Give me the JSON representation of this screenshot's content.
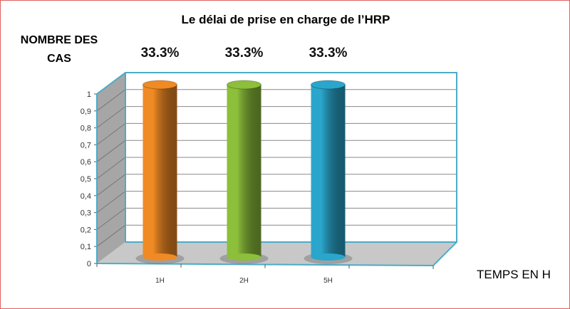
{
  "chart_data": {
    "type": "bar",
    "style": "3d-cylinder",
    "title": "Le délai de prise en charge de l’HRP",
    "ylabel": "NOMBRE DES CAS",
    "xlabel": "TEMPS EN H",
    "categories": [
      "1H",
      "2H",
      "5H"
    ],
    "values": [
      1,
      1,
      1
    ],
    "data_labels": [
      "33.3%",
      "33.3%",
      "33.3%"
    ],
    "ylim": [
      0,
      1
    ],
    "yticks": [
      "0",
      "0,1",
      "0,2",
      "0,3",
      "0,4",
      "0,5",
      "0,6",
      "0,7",
      "0,8",
      "0,9",
      "1"
    ],
    "grid": true,
    "colors": [
      "#f08a24",
      "#8cbf3a",
      "#2aa6cc"
    ],
    "wall_color": "#a6a6a6",
    "floor_color": "#c8c8c8",
    "frame_color": "#4bacc6"
  }
}
